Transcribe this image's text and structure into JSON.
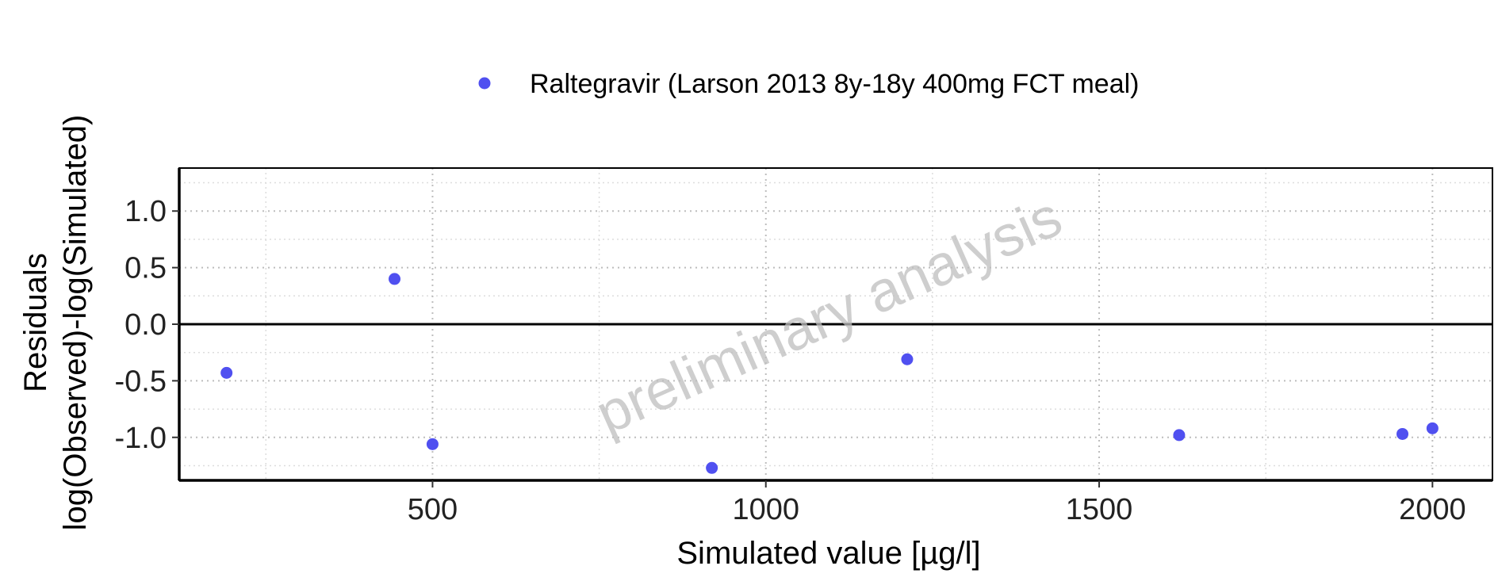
{
  "chart_data": {
    "type": "scatter",
    "title": "",
    "xlabel": "Simulated value [µg/l]",
    "ylabel": [
      "Residuals",
      "log(Observed)-log(Simulated)"
    ],
    "xlim": [
      120,
      2090
    ],
    "ylim": [
      -1.38,
      1.38
    ],
    "x_ticks": [
      500,
      1000,
      1500,
      2000
    ],
    "x_tick_labels": [
      "500",
      "1000",
      "1500",
      "2000"
    ],
    "y_ticks": [
      -1.0,
      -0.5,
      0.0,
      0.5,
      1.0
    ],
    "y_tick_labels": [
      "-1.0",
      "-0.5",
      "0.0",
      "0.5",
      "1.0"
    ],
    "grid": true,
    "reference_line_y": 0,
    "legend_position": "top",
    "watermark": "preliminary analysis",
    "series": [
      {
        "name": "Raltegravir (Larson 2013 8y-18y 400mg FCT meal)",
        "color": "#5050f0",
        "x": [
          191,
          443,
          500,
          919,
          1212,
          1620,
          1955,
          2000
        ],
        "y": [
          -0.43,
          0.4,
          -1.06,
          -1.27,
          -0.31,
          -0.98,
          -0.97,
          -0.92
        ]
      }
    ]
  }
}
